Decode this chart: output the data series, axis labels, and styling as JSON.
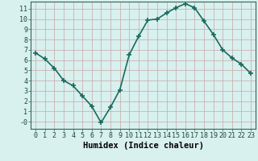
{
  "x": [
    0,
    1,
    2,
    3,
    4,
    5,
    6,
    7,
    8,
    9,
    10,
    11,
    12,
    13,
    14,
    15,
    16,
    17,
    18,
    19,
    20,
    21,
    22,
    23
  ],
  "y": [
    6.7,
    6.1,
    5.2,
    4.0,
    3.5,
    2.5,
    1.5,
    -0.1,
    1.4,
    3.1,
    6.5,
    8.3,
    9.9,
    10.0,
    10.6,
    11.1,
    11.5,
    11.1,
    9.8,
    8.5,
    7.0,
    6.2,
    5.6,
    4.7
  ],
  "line_color": "#1a6b5e",
  "marker": "+",
  "markersize": 4,
  "markeredgewidth": 1.2,
  "bg_color": "#d8f0ee",
  "grid_color": "#c8a8a8",
  "xlabel": "Humidex (Indice chaleur)",
  "xlim": [
    -0.5,
    23.5
  ],
  "ylim": [
    -0.7,
    11.7
  ],
  "xticks": [
    0,
    1,
    2,
    3,
    4,
    5,
    6,
    7,
    8,
    9,
    10,
    11,
    12,
    13,
    14,
    15,
    16,
    17,
    18,
    19,
    20,
    21,
    22,
    23
  ],
  "yticks": [
    0,
    1,
    2,
    3,
    4,
    5,
    6,
    7,
    8,
    9,
    10,
    11
  ],
  "ytick_labels": [
    "-0",
    "1",
    "2",
    "3",
    "4",
    "5",
    "6",
    "7",
    "8",
    "9",
    "10",
    "11"
  ],
  "xlabel_fontsize": 7.5,
  "tick_fontsize": 6,
  "linewidth": 1.2
}
